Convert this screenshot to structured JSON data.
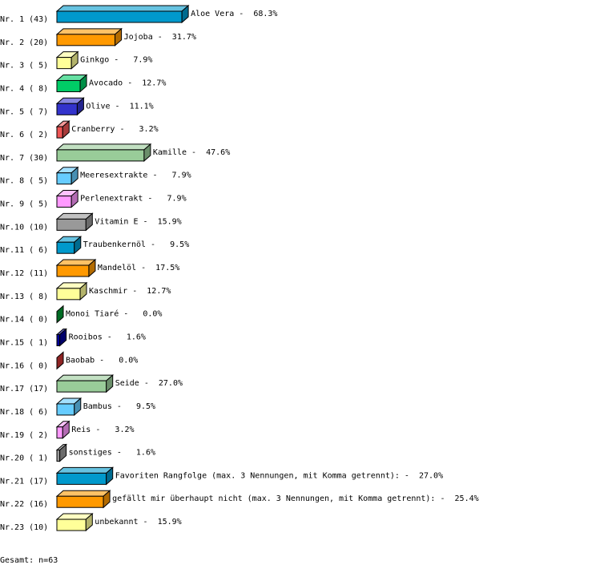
{
  "chart_data": {
    "type": "bar",
    "orientation": "horizontal",
    "style": "3d",
    "categories": [
      "Aloe Vera",
      "Jojoba",
      "Ginkgo",
      "Avocado",
      "Olive",
      "Cranberry",
      "Kamille",
      "Meeresextrakte",
      "Perlenextrakt",
      "Vitamin E",
      "Traubenkernöl",
      "Mandelöl",
      "Kaschmir",
      "Monoi Tiaré",
      "Rooibos",
      "Baobab",
      "Seide",
      "Bambus",
      "Reis",
      "sonstiges",
      "Favoriten Rangfolge (max. 3 Nennungen, mit Komma getrennt):",
      "gefällt mir überhaupt nicht (max. 3 Nennungen, mit Komma getrennt):",
      "unbekannt"
    ],
    "row_labels": [
      "Nr. 1 (43)",
      "Nr. 2 (20)",
      "Nr. 3 ( 5)",
      "Nr. 4 ( 8)",
      "Nr. 5 ( 7)",
      "Nr. 6 ( 2)",
      "Nr. 7 (30)",
      "Nr. 8 ( 5)",
      "Nr. 9 ( 5)",
      "Nr.10 (10)",
      "Nr.11 ( 6)",
      "Nr.12 (11)",
      "Nr.13 ( 8)",
      "Nr.14 ( 0)",
      "Nr.15 ( 1)",
      "Nr.16 ( 0)",
      "Nr.17 (17)",
      "Nr.18 ( 6)",
      "Nr.19 ( 2)",
      "Nr.20 ( 1)",
      "Nr.21 (17)",
      "Nr.22 (16)",
      "Nr.23 (10)"
    ],
    "counts": [
      43,
      20,
      5,
      8,
      7,
      2,
      30,
      5,
      5,
      10,
      6,
      11,
      8,
      0,
      1,
      0,
      17,
      6,
      2,
      1,
      17,
      16,
      10
    ],
    "percent_labels": [
      "68.3%",
      "31.7%",
      "7.9%",
      "12.7%",
      "11.1%",
      "3.2%",
      "47.6%",
      "7.9%",
      "7.9%",
      "15.9%",
      "9.5%",
      "17.5%",
      "12.7%",
      "0.0%",
      "1.6%",
      "0.0%",
      "27.0%",
      "9.5%",
      "3.2%",
      "1.6%",
      "27.0%",
      "25.4%",
      "15.9%"
    ],
    "colors": [
      "#0099cc",
      "#ff9900",
      "#ffff99",
      "#00cc66",
      "#3333cc",
      "#ee5555",
      "#99cc99",
      "#66ccff",
      "#ff99ff",
      "#999999",
      "#0099cc",
      "#ff9900",
      "#ffff99",
      "#009933",
      "#000099",
      "#cc3333",
      "#99cc99",
      "#66ccff",
      "#ff99ff",
      "#999999",
      "#0099cc",
      "#ff9900",
      "#ffff99"
    ],
    "footer": "Gesamt: n=63"
  }
}
